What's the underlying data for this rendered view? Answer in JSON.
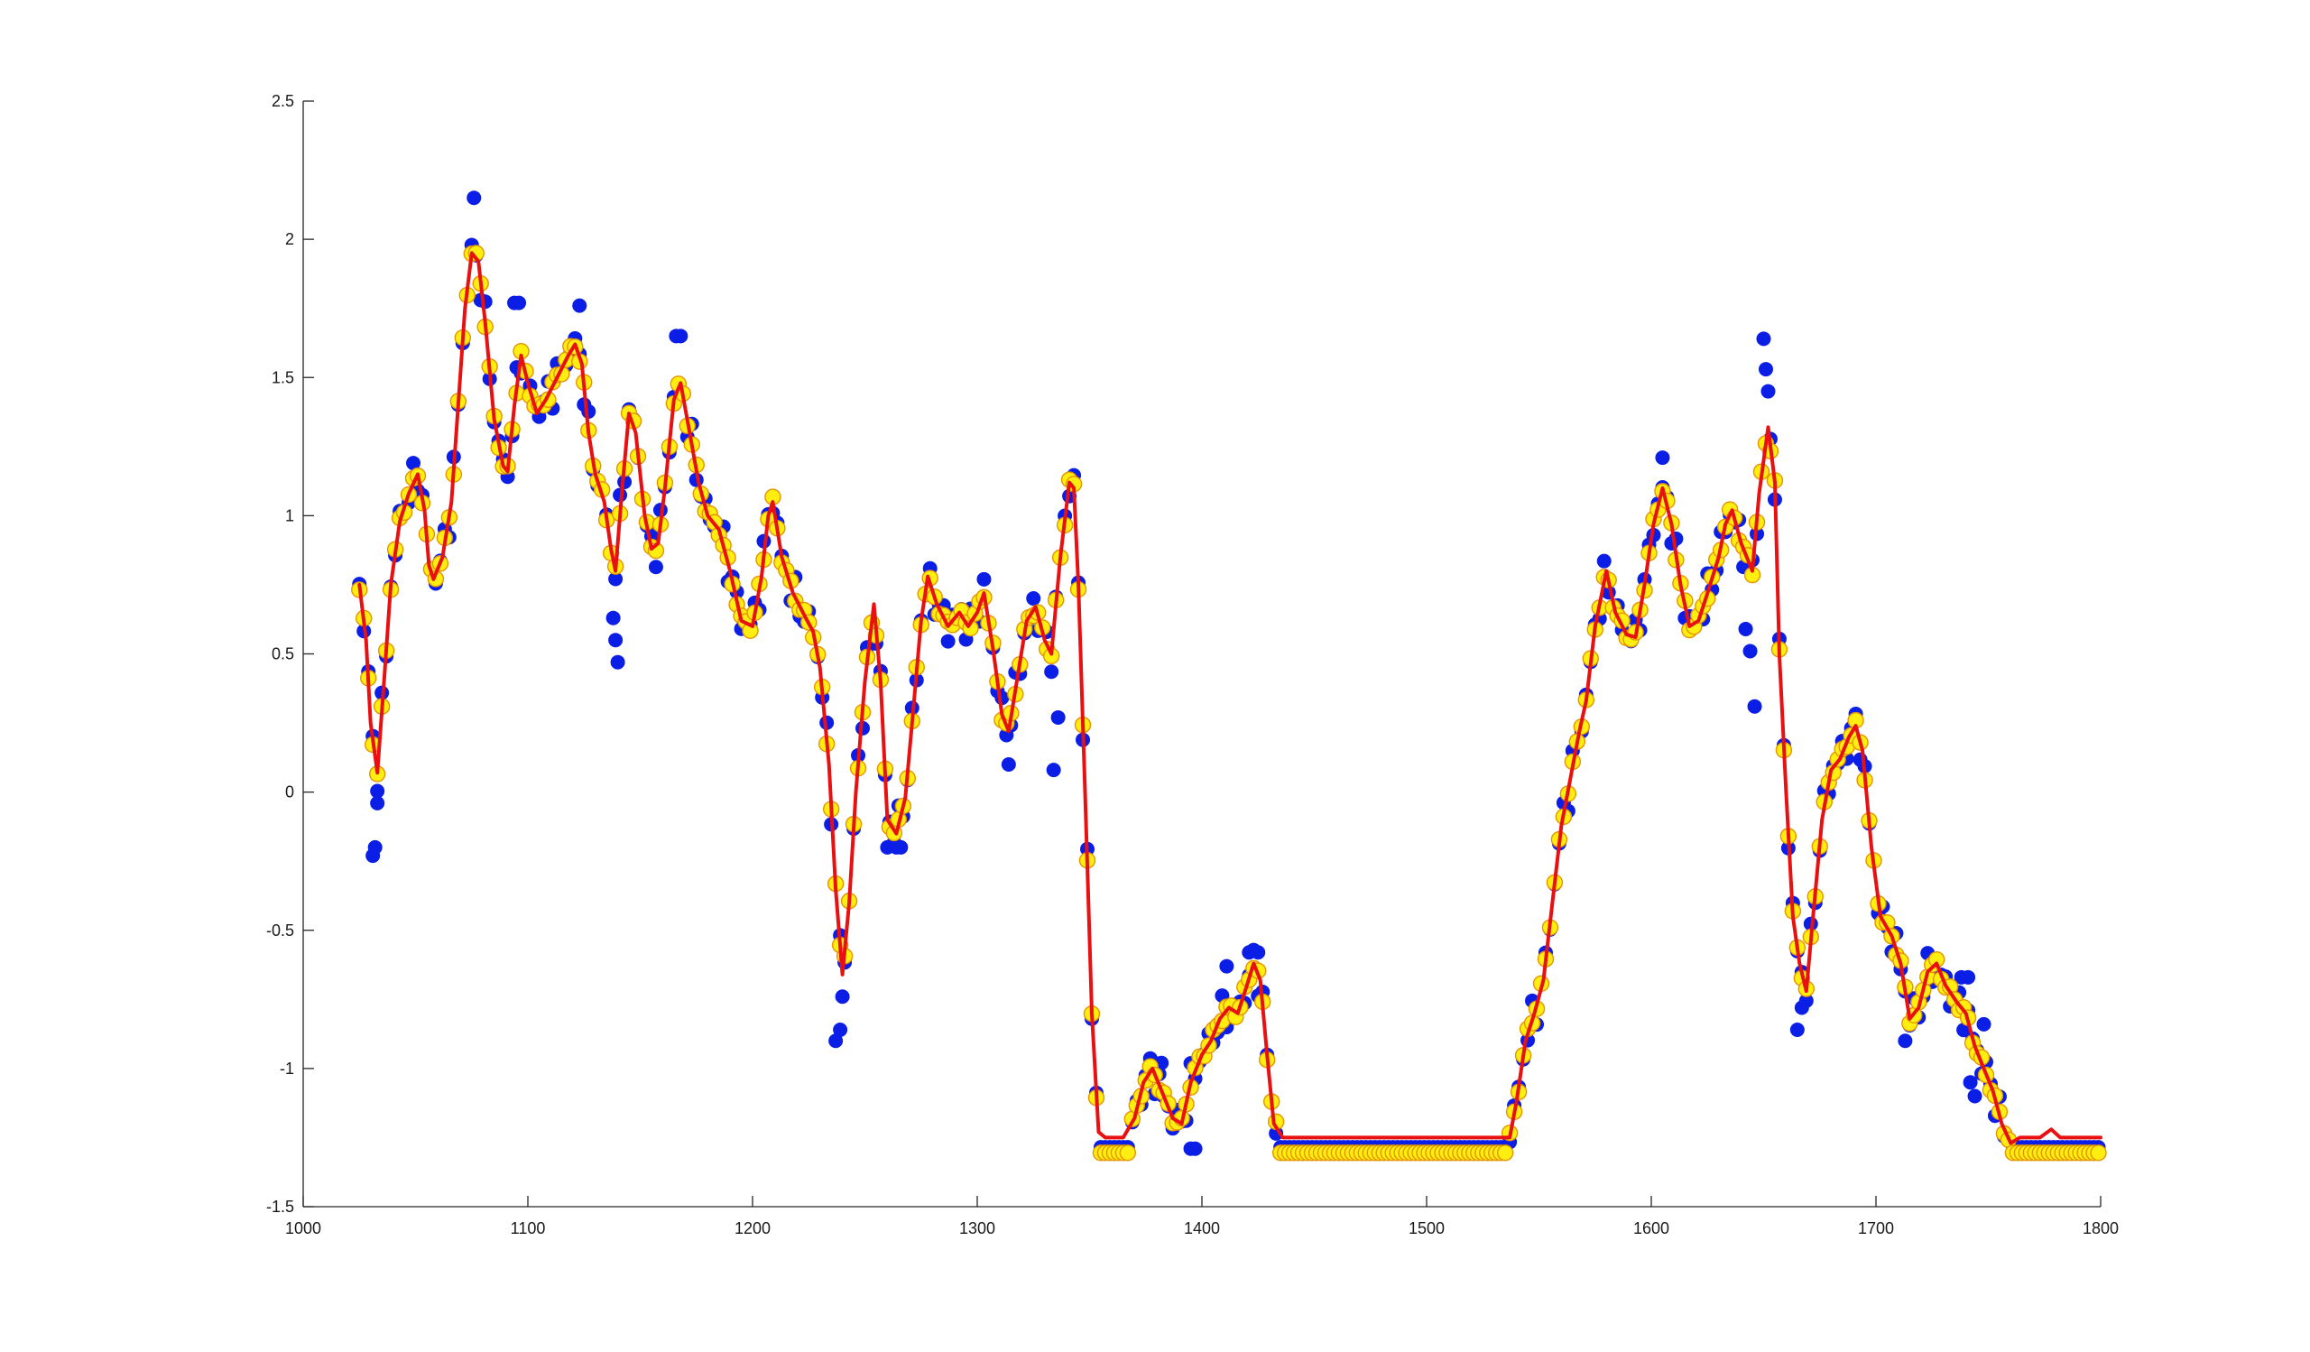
{
  "chart_data": {
    "type": "line+scatter",
    "title": "",
    "xlabel": "",
    "ylabel": "",
    "xlim": [
      1000,
      1800
    ],
    "ylim": [
      -1.5,
      2.5
    ],
    "grid": false,
    "legend": "none",
    "x_ticks": [
      1000,
      1100,
      1200,
      1300,
      1400,
      1500,
      1600,
      1700,
      1800
    ],
    "x_tick_labels": [
      "1000",
      "1100",
      "1200",
      "1300",
      "1400",
      "1500",
      "1600",
      "1700",
      "1800"
    ],
    "y_ticks": [
      -1.5,
      -1,
      -0.5,
      0,
      0.5,
      1,
      1.5,
      2,
      2.5
    ],
    "y_tick_labels": [
      "-1.5",
      "-1",
      "-0.5",
      "0",
      "0.5",
      "1",
      "1.5",
      "2",
      "2.5"
    ],
    "x_start": 1025,
    "x_end": 1800,
    "x_step": 2,
    "series": [
      {
        "name": "raw",
        "style": "scatter",
        "color": "#0a1ee6",
        "edge_color": "#0a1ee6",
        "noise": 0.08,
        "spikes": [
          {
            "x": 1031,
            "y": -0.23
          },
          {
            "x": 1032,
            "y": -0.2
          },
          {
            "x": 1033,
            "y": -0.04
          },
          {
            "x": 1076,
            "y": 2.15
          },
          {
            "x": 1094,
            "y": 1.77
          },
          {
            "x": 1096,
            "y": 1.77
          },
          {
            "x": 1123,
            "y": 1.76
          },
          {
            "x": 1138,
            "y": 0.63
          },
          {
            "x": 1139,
            "y": 0.55
          },
          {
            "x": 1140,
            "y": 0.47
          },
          {
            "x": 1166,
            "y": 1.65
          },
          {
            "x": 1168,
            "y": 1.65
          },
          {
            "x": 1237,
            "y": -0.9
          },
          {
            "x": 1239,
            "y": -0.86
          },
          {
            "x": 1240,
            "y": -0.74
          },
          {
            "x": 1260,
            "y": -0.2
          },
          {
            "x": 1264,
            "y": -0.2
          },
          {
            "x": 1266,
            "y": -0.2
          },
          {
            "x": 1314,
            "y": 0.1
          },
          {
            "x": 1334,
            "y": 0.08
          },
          {
            "x": 1336,
            "y": 0.27
          },
          {
            "x": 1379,
            "y": -0.98
          },
          {
            "x": 1382,
            "y": -0.98
          },
          {
            "x": 1395,
            "y": -1.29
          },
          {
            "x": 1397,
            "y": -1.29
          },
          {
            "x": 1411,
            "y": -0.63
          },
          {
            "x": 1421,
            "y": -0.58
          },
          {
            "x": 1425,
            "y": -0.58
          },
          {
            "x": 1605,
            "y": 1.21
          },
          {
            "x": 1642,
            "y": 0.59
          },
          {
            "x": 1644,
            "y": 0.51
          },
          {
            "x": 1646,
            "y": 0.31
          },
          {
            "x": 1650,
            "y": 1.64
          },
          {
            "x": 1651,
            "y": 1.53
          },
          {
            "x": 1652,
            "y": 1.45
          },
          {
            "x": 1665,
            "y": -0.86
          },
          {
            "x": 1667,
            "y": -0.78
          },
          {
            "x": 1713,
            "y": -0.9
          },
          {
            "x": 1738,
            "y": -0.67
          },
          {
            "x": 1741,
            "y": -0.67
          },
          {
            "x": 1742,
            "y": -1.05
          },
          {
            "x": 1744,
            "y": -1.1
          },
          {
            "x": 1748,
            "y": -0.84
          }
        ]
      },
      {
        "name": "filtered",
        "style": "scatter",
        "color": "#ffee10",
        "edge_color": "#e59400",
        "noise": 0.02
      },
      {
        "name": "smooth",
        "style": "line",
        "color": "#e81010",
        "anchors": [
          [
            1025,
            0.75
          ],
          [
            1028,
            0.55
          ],
          [
            1030,
            0.25
          ],
          [
            1033,
            0.07
          ],
          [
            1036,
            0.4
          ],
          [
            1039,
            0.75
          ],
          [
            1043,
            0.98
          ],
          [
            1047,
            1.08
          ],
          [
            1051,
            1.15
          ],
          [
            1054,
            1.02
          ],
          [
            1056,
            0.82
          ],
          [
            1058,
            0.77
          ],
          [
            1062,
            0.85
          ],
          [
            1066,
            1.05
          ],
          [
            1069,
            1.4
          ],
          [
            1072,
            1.75
          ],
          [
            1075,
            1.95
          ],
          [
            1078,
            1.92
          ],
          [
            1081,
            1.7
          ],
          [
            1085,
            1.35
          ],
          [
            1089,
            1.18
          ],
          [
            1091,
            1.16
          ],
          [
            1094,
            1.4
          ],
          [
            1097,
            1.58
          ],
          [
            1100,
            1.48
          ],
          [
            1104,
            1.37
          ],
          [
            1108,
            1.42
          ],
          [
            1113,
            1.5
          ],
          [
            1118,
            1.58
          ],
          [
            1121,
            1.62
          ],
          [
            1124,
            1.55
          ],
          [
            1127,
            1.3
          ],
          [
            1130,
            1.15
          ],
          [
            1134,
            1.05
          ],
          [
            1137,
            0.88
          ],
          [
            1139,
            0.8
          ],
          [
            1142,
            1.1
          ],
          [
            1145,
            1.37
          ],
          [
            1148,
            1.3
          ],
          [
            1152,
            1.0
          ],
          [
            1155,
            0.88
          ],
          [
            1158,
            0.9
          ],
          [
            1161,
            1.1
          ],
          [
            1165,
            1.42
          ],
          [
            1168,
            1.48
          ],
          [
            1172,
            1.3
          ],
          [
            1176,
            1.12
          ],
          [
            1180,
            1.0
          ],
          [
            1185,
            0.95
          ],
          [
            1190,
            0.8
          ],
          [
            1195,
            0.62
          ],
          [
            1200,
            0.6
          ],
          [
            1204,
            0.78
          ],
          [
            1207,
            1.0
          ],
          [
            1209,
            1.05
          ],
          [
            1213,
            0.85
          ],
          [
            1218,
            0.72
          ],
          [
            1223,
            0.64
          ],
          [
            1227,
            0.58
          ],
          [
            1230,
            0.45
          ],
          [
            1234,
            0.1
          ],
          [
            1237,
            -0.35
          ],
          [
            1240,
            -0.66
          ],
          [
            1243,
            -0.4
          ],
          [
            1246,
            0.0
          ],
          [
            1250,
            0.4
          ],
          [
            1254,
            0.68
          ],
          [
            1257,
            0.4
          ],
          [
            1260,
            -0.1
          ],
          [
            1264,
            -0.15
          ],
          [
            1268,
            -0.02
          ],
          [
            1271,
            0.25
          ],
          [
            1275,
            0.62
          ],
          [
            1278,
            0.78
          ],
          [
            1282,
            0.68
          ],
          [
            1287,
            0.6
          ],
          [
            1292,
            0.65
          ],
          [
            1296,
            0.6
          ],
          [
            1300,
            0.65
          ],
          [
            1303,
            0.72
          ],
          [
            1307,
            0.52
          ],
          [
            1311,
            0.28
          ],
          [
            1314,
            0.22
          ],
          [
            1318,
            0.42
          ],
          [
            1322,
            0.62
          ],
          [
            1326,
            0.67
          ],
          [
            1330,
            0.55
          ],
          [
            1333,
            0.5
          ],
          [
            1337,
            0.85
          ],
          [
            1341,
            1.12
          ],
          [
            1343,
            1.1
          ],
          [
            1345,
            0.75
          ],
          [
            1348,
            0.0
          ],
          [
            1351,
            -0.8
          ],
          [
            1354,
            -1.23
          ],
          [
            1357,
            -1.25
          ],
          [
            1365,
            -1.25
          ],
          [
            1370,
            -1.18
          ],
          [
            1374,
            -1.05
          ],
          [
            1378,
            -1.0
          ],
          [
            1382,
            -1.08
          ],
          [
            1387,
            -1.18
          ],
          [
            1391,
            -1.2
          ],
          [
            1395,
            -1.05
          ],
          [
            1400,
            -0.95
          ],
          [
            1404,
            -0.9
          ],
          [
            1408,
            -0.82
          ],
          [
            1412,
            -0.78
          ],
          [
            1416,
            -0.8
          ],
          [
            1420,
            -0.7
          ],
          [
            1423,
            -0.62
          ],
          [
            1426,
            -0.68
          ],
          [
            1429,
            -0.95
          ],
          [
            1432,
            -1.2
          ],
          [
            1436,
            -1.25
          ],
          [
            1537,
            -1.25
          ],
          [
            1540,
            -1.12
          ],
          [
            1544,
            -0.9
          ],
          [
            1548,
            -0.8
          ],
          [
            1552,
            -0.68
          ],
          [
            1556,
            -0.4
          ],
          [
            1560,
            -0.12
          ],
          [
            1564,
            0.05
          ],
          [
            1568,
            0.22
          ],
          [
            1571,
            0.33
          ],
          [
            1575,
            0.6
          ],
          [
            1580,
            0.8
          ],
          [
            1584,
            0.65
          ],
          [
            1589,
            0.57
          ],
          [
            1593,
            0.56
          ],
          [
            1597,
            0.75
          ],
          [
            1601,
            0.97
          ],
          [
            1605,
            1.1
          ],
          [
            1609,
            0.97
          ],
          [
            1613,
            0.75
          ],
          [
            1617,
            0.6
          ],
          [
            1621,
            0.62
          ],
          [
            1625,
            0.72
          ],
          [
            1630,
            0.85
          ],
          [
            1633,
            0.97
          ],
          [
            1636,
            1.02
          ],
          [
            1640,
            0.9
          ],
          [
            1645,
            0.8
          ],
          [
            1648,
            1.08
          ],
          [
            1652,
            1.32
          ],
          [
            1655,
            1.12
          ],
          [
            1657,
            0.5
          ],
          [
            1660,
            0.0
          ],
          [
            1663,
            -0.45
          ],
          [
            1666,
            -0.62
          ],
          [
            1669,
            -0.72
          ],
          [
            1672,
            -0.45
          ],
          [
            1676,
            -0.1
          ],
          [
            1680,
            0.08
          ],
          [
            1684,
            0.12
          ],
          [
            1688,
            0.2
          ],
          [
            1691,
            0.24
          ],
          [
            1694,
            0.15
          ],
          [
            1698,
            -0.2
          ],
          [
            1702,
            -0.45
          ],
          [
            1707,
            -0.52
          ],
          [
            1711,
            -0.62
          ],
          [
            1715,
            -0.82
          ],
          [
            1719,
            -0.78
          ],
          [
            1723,
            -0.65
          ],
          [
            1727,
            -0.62
          ],
          [
            1731,
            -0.7
          ],
          [
            1736,
            -0.76
          ],
          [
            1740,
            -0.8
          ],
          [
            1744,
            -0.92
          ],
          [
            1748,
            -1.0
          ],
          [
            1752,
            -1.08
          ],
          [
            1756,
            -1.2
          ],
          [
            1760,
            -1.27
          ],
          [
            1764,
            -1.25
          ],
          [
            1773,
            -1.25
          ],
          [
            1778,
            -1.22
          ],
          [
            1782,
            -1.25
          ],
          [
            1800,
            -1.25
          ]
        ]
      }
    ]
  }
}
